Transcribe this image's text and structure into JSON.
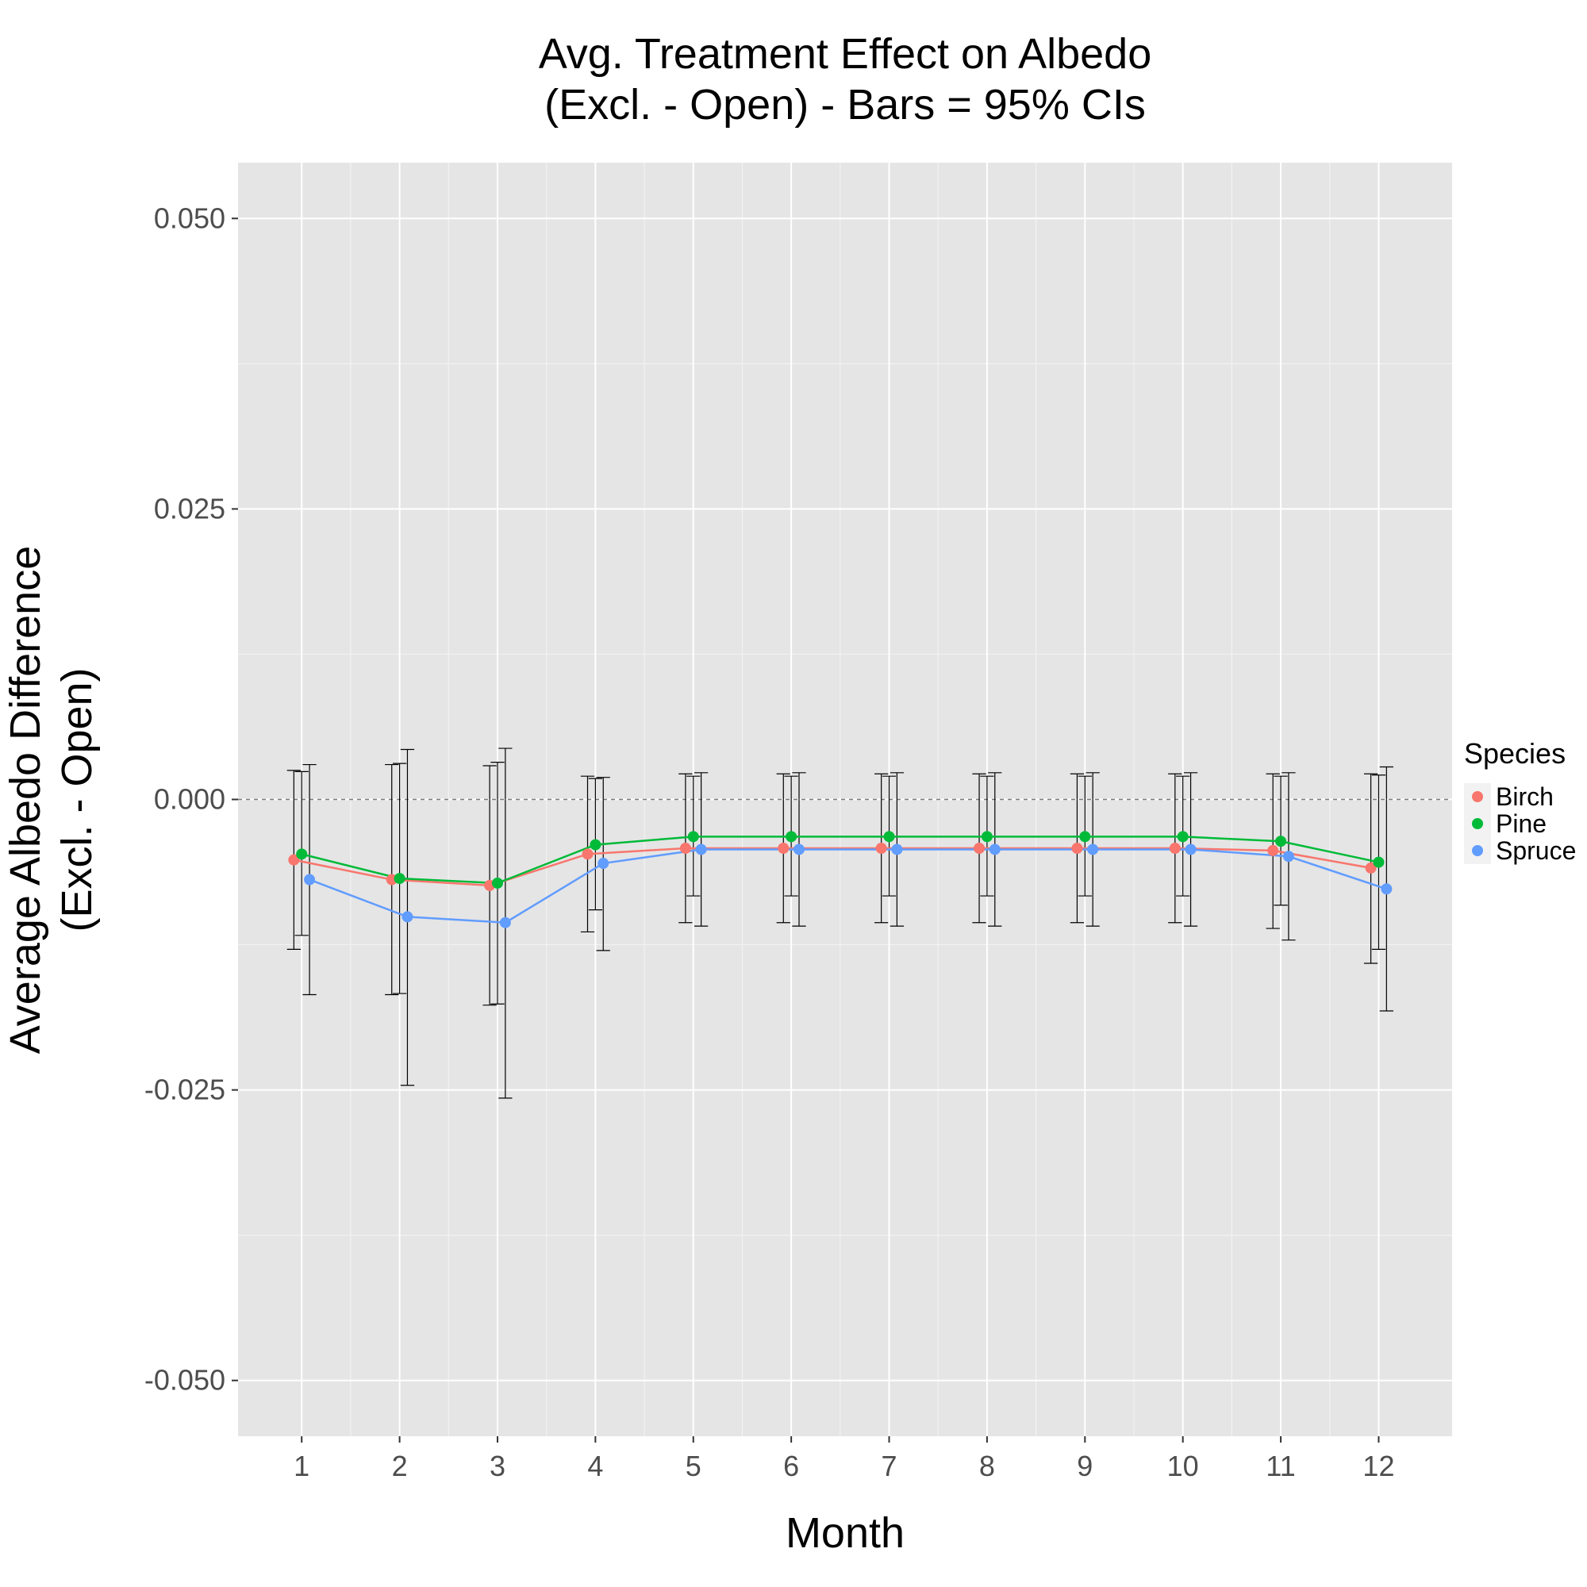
{
  "chart_data": {
    "type": "line",
    "title_line1": "Avg. Treatment Effect on Albedo",
    "title_line2": "(Excl. - Open) - Bars = 95% CIs",
    "xlabel": "Month",
    "ylabel_line1": "Average Albedo Difference",
    "ylabel_line2": "(Excl. - Open)",
    "x": [
      1,
      2,
      3,
      4,
      5,
      6,
      7,
      8,
      9,
      10,
      11,
      12
    ],
    "x_tick_labels": [
      "1",
      "2",
      "3",
      "4",
      "5",
      "6",
      "7",
      "8",
      "9",
      "10",
      "11",
      "12"
    ],
    "y_ticks": [
      0.05,
      0.025,
      0.0,
      -0.025,
      -0.05
    ],
    "y_tick_labels": [
      "0.050",
      "0.025",
      "0.000",
      "-0.025",
      "-0.050"
    ],
    "ylim": [
      -0.0548,
      0.0548
    ],
    "xlim": [
      0.35,
      12.75
    ],
    "reference_line": 0.0,
    "grid": true,
    "legend_title": "Species",
    "legend_position": "right",
    "series": [
      {
        "name": "Birch",
        "color": "#F8766D",
        "values": [
          -0.0052,
          -0.0069,
          -0.0074,
          -0.0047,
          -0.0042,
          -0.0042,
          -0.0042,
          -0.0042,
          -0.0042,
          -0.0042,
          -0.0044,
          -0.0059
        ],
        "ci_lower": [
          -0.0129,
          -0.0168,
          -0.0177,
          -0.0114,
          -0.0106,
          -0.0106,
          -0.0106,
          -0.0106,
          -0.0106,
          -0.0106,
          -0.0111,
          -0.0141
        ],
        "ci_upper": [
          0.0025,
          0.003,
          0.0029,
          0.002,
          0.0022,
          0.0022,
          0.0022,
          0.0022,
          0.0022,
          0.0022,
          0.0022,
          0.0022
        ]
      },
      {
        "name": "Pine",
        "color": "#00BA38",
        "values": [
          -0.0047,
          -0.0068,
          -0.0072,
          -0.0039,
          -0.0032,
          -0.0032,
          -0.0032,
          -0.0032,
          -0.0032,
          -0.0032,
          -0.0036,
          -0.0054
        ],
        "ci_lower": [
          -0.0117,
          -0.0167,
          -0.0176,
          -0.0095,
          -0.0083,
          -0.0083,
          -0.0083,
          -0.0083,
          -0.0083,
          -0.0083,
          -0.0091,
          -0.0129
        ],
        "ci_upper": [
          0.0024,
          0.0031,
          0.0032,
          0.0018,
          0.002,
          0.002,
          0.002,
          0.002,
          0.002,
          0.002,
          0.002,
          0.0021
        ]
      },
      {
        "name": "Spruce",
        "color": "#619CFF",
        "values": [
          -0.0069,
          -0.0101,
          -0.0106,
          -0.0055,
          -0.0043,
          -0.0043,
          -0.0043,
          -0.0043,
          -0.0043,
          -0.0043,
          -0.0049,
          -0.0077
        ],
        "ci_lower": [
          -0.0168,
          -0.0246,
          -0.0257,
          -0.013,
          -0.0109,
          -0.0109,
          -0.0109,
          -0.0109,
          -0.0109,
          -0.0109,
          -0.0121,
          -0.0182
        ],
        "ci_upper": [
          0.003,
          0.0043,
          0.0044,
          0.0019,
          0.0023,
          0.0023,
          0.0023,
          0.0023,
          0.0023,
          0.0023,
          0.0023,
          0.0028
        ]
      }
    ]
  }
}
